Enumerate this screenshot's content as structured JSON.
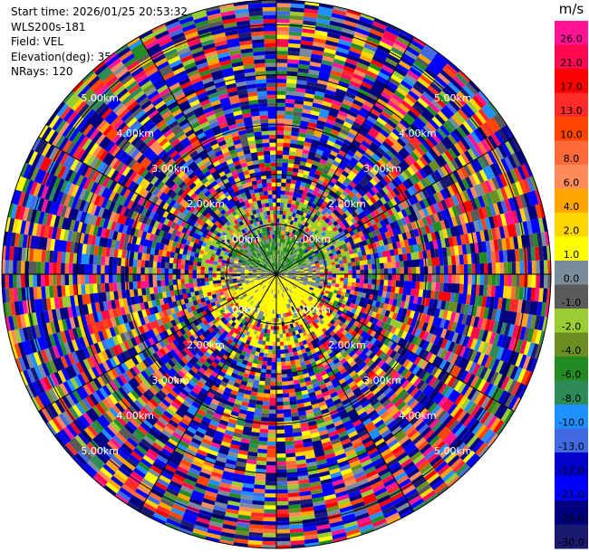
{
  "info": {
    "start_time": "Start time: 2026/01/25 20:53:32",
    "instrument": "WLS200s-181",
    "field": "Field: VEL",
    "elevation": "Elevation(deg): 35.00",
    "nrays": "NRays: 120"
  },
  "colorbar": {
    "unit": "m/s",
    "ticks": [
      "26.0",
      "21.0",
      "17.0",
      "13.0",
      "10.0",
      "8.0",
      "6.0",
      "4.0",
      "2.0",
      "1.0",
      "0.0",
      "-1.0",
      "-2.0",
      "-4.0",
      "-6.0",
      "-8.0",
      "-10.0",
      "-13.0",
      "-17.0",
      "-21.0",
      "-26.0",
      "-30.0"
    ],
    "colors": [
      "#ff1493",
      "#ff0a50",
      "#ff0000",
      "#ff2a2a",
      "#ff4500",
      "#ff6a3a",
      "#ff8c5a",
      "#ffa500",
      "#ffd700",
      "#ffff00",
      "#7a8c9a",
      "#5a5a5a",
      "#9acd32",
      "#6b8e23",
      "#228b22",
      "#2e8b57",
      "#1e90ff",
      "#4169e1",
      "#0000cd",
      "#0000ff",
      "#000080",
      "#191970"
    ]
  },
  "chart_data": {
    "type": "heatmap",
    "field": "VEL",
    "units": "m/s",
    "elevation_deg": 35.0,
    "n_rays": 120,
    "range_rings_km": [
      "1.00km",
      "2.00km",
      "3.00km",
      "4.00km",
      "5.00km"
    ],
    "max_range_km": 5.5,
    "value_range": [
      -30.0,
      26.0
    ]
  }
}
